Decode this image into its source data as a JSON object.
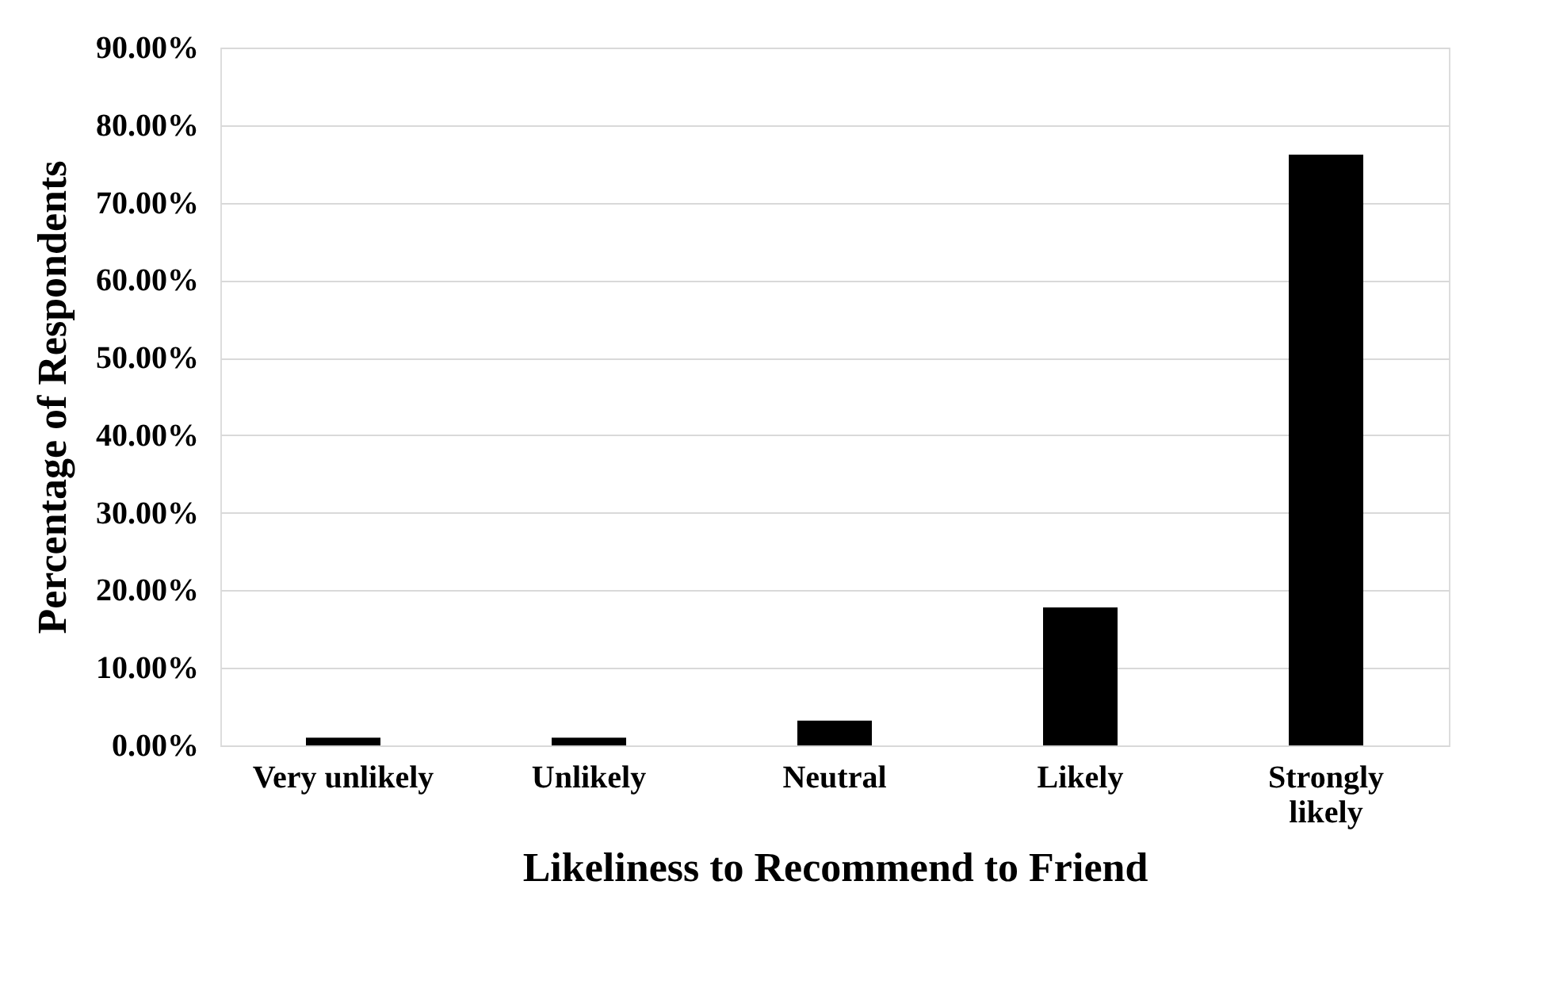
{
  "chart_data": {
    "type": "bar",
    "xlabel": "Likeliness to Recommend to Friend",
    "ylabel": "Percentage of Respondents",
    "categories": [
      "Very unlikely",
      "Unlikely",
      "Neutral",
      "Likely",
      "Strongly likely"
    ],
    "values": [
      1.0,
      1.0,
      3.2,
      17.8,
      76.2
    ],
    "color": "#000000",
    "ylim": [
      0,
      90
    ],
    "yticks": [
      {
        "value": 0,
        "label": "0.00%"
      },
      {
        "value": 10,
        "label": "10.00%"
      },
      {
        "value": 20,
        "label": "20.00%"
      },
      {
        "value": 30,
        "label": "30.00%"
      },
      {
        "value": 40,
        "label": "40.00%"
      },
      {
        "value": 50,
        "label": "50.00%"
      },
      {
        "value": 60,
        "label": "60.00%"
      },
      {
        "value": 70,
        "label": "70.00%"
      },
      {
        "value": 80,
        "label": "80.00%"
      },
      {
        "value": 90,
        "label": "90.00%"
      }
    ],
    "grid": "y"
  }
}
